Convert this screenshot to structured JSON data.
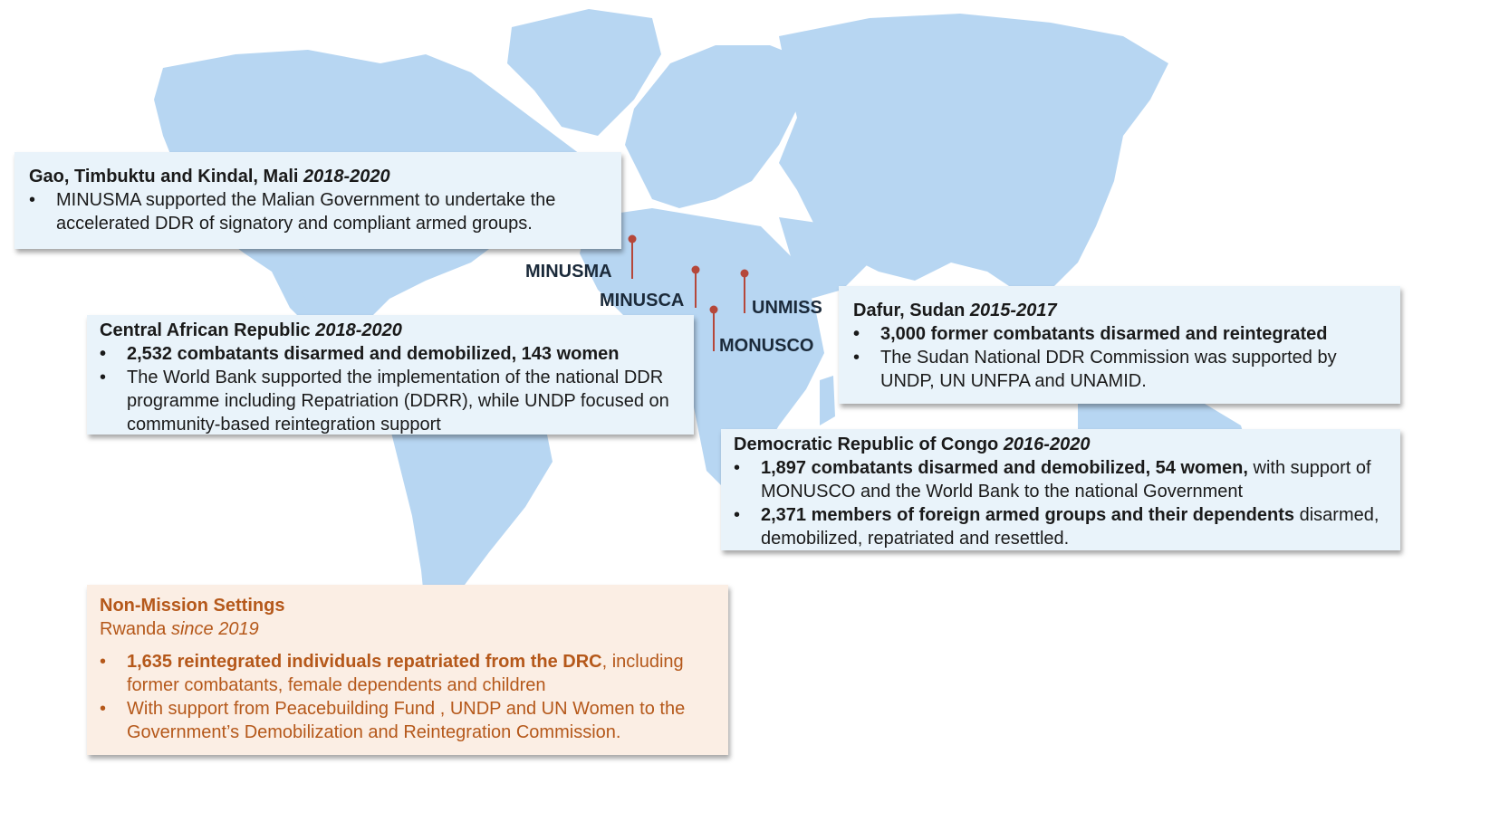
{
  "colors": {
    "land": "#b7d6f2",
    "blue_card_bg": "#e9f3fa",
    "orange_card_bg": "#fbeee4",
    "orange_text": "#b5581a",
    "marker": "#b5473a"
  },
  "map": {
    "mission_labels": {
      "minusma": "MINUSMA",
      "minusca": "MINUSCA",
      "monusco": "MONUSCO",
      "unmiss": "UNMISS"
    }
  },
  "mali": {
    "title": "Gao, Timbuktu and Kindal, Mali",
    "years": "2018-2020",
    "bullets": [
      "MINUSMA supported the Malian Government to undertake the accelerated DDR of signatory and compliant armed groups."
    ]
  },
  "car": {
    "title": "Central African Republic",
    "years": "2018-2020",
    "bullet1": "2,532 combatants disarmed and demobilized, 143 women",
    "bullet2": "The World Bank supported the implementation of the national DDR programme including Repatriation (DDRR), while UNDP focused on community-based reintegration support"
  },
  "sudan": {
    "title": "Dafur, Sudan",
    "years": "2015-2017",
    "bullet1": "3,000 former combatants disarmed and reintegrated",
    "bullet2": "The Sudan National DDR Commission was supported by UNDP, UN UNFPA and UNAMID."
  },
  "drc": {
    "title": "Democratic Republic of Congo",
    "years": "2016-2020",
    "bullet1_bold": "1,897 combatants disarmed and demobilized, 54 women,",
    "bullet1_rest": " with support of MONUSCO and the World Bank to the national Government",
    "bullet2_bold": "2,371 members of foreign armed groups and their dependents",
    "bullet2_rest": " disarmed, demobilized, repatriated and resettled."
  },
  "non_mission": {
    "title": "Non-Mission Settings",
    "subtitle_place": "Rwanda",
    "subtitle_since": " since 2019",
    "bullet1_bold": "1,635 reintegrated individuals repatriated from the DRC",
    "bullet1_rest": ", including former combatants, female dependents and children",
    "bullet2": "With support from Peacebuilding Fund , UNDP and UN Women to the Government’s Demobilization and Reintegration Commission."
  }
}
